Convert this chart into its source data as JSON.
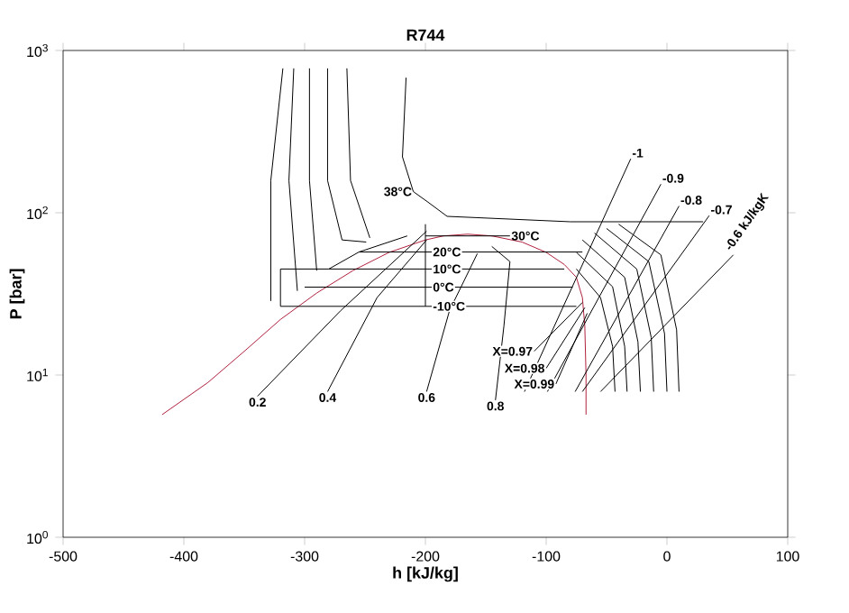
{
  "chart_data": {
    "type": "line",
    "title": "R744",
    "xlabel": "h [kJ/kg]",
    "ylabel": "P [bar]",
    "log": "y",
    "xlim": [
      -500,
      100
    ],
    "xticks": [
      -500,
      -400,
      -300,
      -200,
      -100,
      0,
      100
    ],
    "ylim": [
      1,
      1000
    ],
    "yticks": [
      {
        "value": 1,
        "label": "10$^{0}$"
      },
      {
        "value": 10,
        "label": "10$^{1}$"
      },
      {
        "value": 100,
        "label": "10$^{2}$"
      },
      {
        "value": 1000,
        "label": "10$^{3}$"
      }
    ],
    "grid": false,
    "marker": "none",
    "line_style": "solid",
    "series": [
      {
        "color": "#b0203c",
        "x": [
          -418,
          -380,
          -350,
          -320,
          -290,
          -260,
          -230,
          -200,
          -185,
          -165,
          -145,
          -120,
          -100,
          -85,
          -75,
          -70,
          -68,
          -67,
          -67
        ],
        "values": [
          5.7,
          9,
          14,
          22,
          32,
          44,
          57,
          68,
          72,
          73.8,
          72,
          66,
          57,
          48,
          40,
          30,
          20,
          10,
          5.7
        ]
      },
      {
        "color": "#000000",
        "x": [
          -320,
          -320,
          -320,
          -300,
          -280,
          -255,
          -215
        ],
        "values": [
          26.5,
          34.8,
          45,
          45,
          45,
          57.3,
          72
        ]
      },
      {
        "color": "#000000",
        "x": [
          -320,
          -75
        ],
        "values": [
          26.5,
          26.5
        ]
      },
      {
        "color": "#000000",
        "x": [
          -300,
          -78
        ],
        "values": [
          34.8,
          34.8
        ]
      },
      {
        "color": "#000000",
        "x": [
          -280,
          -85
        ],
        "values": [
          45,
          45
        ]
      },
      {
        "color": "#000000",
        "x": [
          -255,
          -70
        ],
        "values": [
          57.3,
          57.3
        ]
      },
      {
        "color": "#000000",
        "x": [
          -200,
          -130
        ],
        "values": [
          72,
          72
        ]
      },
      {
        "color": "#000000",
        "x": [
          -200,
          -200
        ],
        "values": [
          26.5,
          85
        ]
      },
      {
        "color": "#000000",
        "x": [
          -318,
          -328,
          -328
        ],
        "values": [
          776,
          158,
          28.6
        ]
      },
      {
        "color": "#000000",
        "x": [
          -309,
          -313,
          -306
        ],
        "values": [
          776,
          158,
          33
        ]
      },
      {
        "color": "#000000",
        "x": [
          -296,
          -296,
          -290
        ],
        "values": [
          776,
          158,
          44
        ]
      },
      {
        "color": "#000000",
        "x": [
          -281,
          -281,
          -269,
          -249
        ],
        "values": [
          776,
          158,
          68,
          66
        ]
      },
      {
        "color": "#000000",
        "x": [
          -265,
          -262,
          -246
        ],
        "values": [
          776,
          158,
          70
        ]
      },
      {
        "color": "#000000",
        "x": [
          -216,
          -219,
          -210,
          -197,
          -182,
          -80,
          30
        ],
        "values": [
          680,
          221,
          135,
          115,
          95,
          88,
          88
        ]
      },
      {
        "color": "#000000",
        "x": [
          -339,
          -270,
          -199
        ],
        "values": [
          7.4,
          25,
          77
        ]
      },
      {
        "color": "#000000",
        "x": [
          -281,
          -240,
          -199
        ],
        "values": [
          7.9,
          30,
          68
        ]
      },
      {
        "color": "#000000",
        "x": [
          -199,
          -180,
          -157
        ],
        "values": [
          7.9,
          25,
          56
        ]
      },
      {
        "color": "#000000",
        "x": [
          -142,
          -135,
          -130,
          -145
        ],
        "values": [
          7.0,
          20,
          50,
          62
        ]
      },
      {
        "color": "#000000",
        "x": [
          -118,
          -30
        ],
        "values": [
          7.9,
          215
        ]
      },
      {
        "color": "#000000",
        "x": [
          -99,
          -5
        ],
        "values": [
          7.9,
          150
        ]
      },
      {
        "color": "#000000",
        "x": [
          -76,
          10
        ],
        "values": [
          7.9,
          110
        ]
      },
      {
        "color": "#000000",
        "x": [
          -70,
          35
        ],
        "values": [
          7.9,
          96
        ]
      },
      {
        "color": "#000000",
        "x": [
          -55,
          55
        ],
        "values": [
          7.9,
          55
        ]
      },
      {
        "color": "#000000",
        "x": [
          -110,
          -70
        ],
        "values": [
          14,
          28
        ]
      },
      {
        "color": "#000000",
        "x": [
          -100,
          -68
        ],
        "values": [
          11,
          26
        ]
      },
      {
        "color": "#000000",
        "x": [
          -92,
          -66
        ],
        "values": [
          8.8,
          24
        ]
      },
      {
        "color": "#000000",
        "x": [
          -75,
          -55,
          -45,
          -43
        ],
        "values": [
          45,
          30,
          15,
          7.9
        ]
      },
      {
        "color": "#000000",
        "x": [
          -75,
          -45,
          -35,
          -33
        ],
        "values": [
          57,
          35,
          15,
          7.9
        ]
      },
      {
        "color": "#000000",
        "x": [
          -70,
          -35,
          -24,
          -22
        ],
        "values": [
          68,
          40,
          16,
          7.9
        ]
      },
      {
        "color": "#000000",
        "x": [
          -60,
          -25,
          -13,
          -11
        ],
        "values": [
          75,
          45,
          17,
          7.9
        ]
      },
      {
        "color": "#000000",
        "x": [
          -50,
          -15,
          -2,
          0
        ],
        "values": [
          80,
          50,
          18,
          7.9
        ]
      },
      {
        "color": "#000000",
        "x": [
          -40,
          -5,
          8,
          10
        ],
        "values": [
          85,
          55,
          19,
          7.9
        ]
      }
    ],
    "annotations": [
      {
        "text": "38°C",
        "x": -210,
        "y": 135
      },
      {
        "text": "30°C",
        "x": -130,
        "y": 72
      },
      {
        "text": "20°C",
        "x": -195,
        "y": 57.3
      },
      {
        "text": "10°C",
        "x": -195,
        "y": 45
      },
      {
        "text": "0°C",
        "x": -195,
        "y": 34.8
      },
      {
        "text": "-10°C",
        "x": -195,
        "y": 26.5
      },
      {
        "text": "0.2",
        "x": -339,
        "y": 7.4
      },
      {
        "text": "0.4",
        "x": -281,
        "y": 7.9
      },
      {
        "text": "0.6",
        "x": -199,
        "y": 7.9
      },
      {
        "text": "0.8",
        "x": -142,
        "y": 7.0
      },
      {
        "text": "X=0.97",
        "x": -110,
        "y": 14
      },
      {
        "text": "X=0.98",
        "x": -100,
        "y": 11
      },
      {
        "text": "X=0.99",
        "x": -92,
        "y": 8.8
      },
      {
        "text": "-1",
        "x": -30,
        "y": 215
      },
      {
        "text": "-0.9",
        "x": -5,
        "y": 150
      },
      {
        "text": "-0.8",
        "x": 10,
        "y": 110
      },
      {
        "text": "-0.7",
        "x": 35,
        "y": 96
      },
      {
        "text": "-0.6 kJ/kgK",
        "x": 55,
        "y": 55
      }
    ]
  }
}
